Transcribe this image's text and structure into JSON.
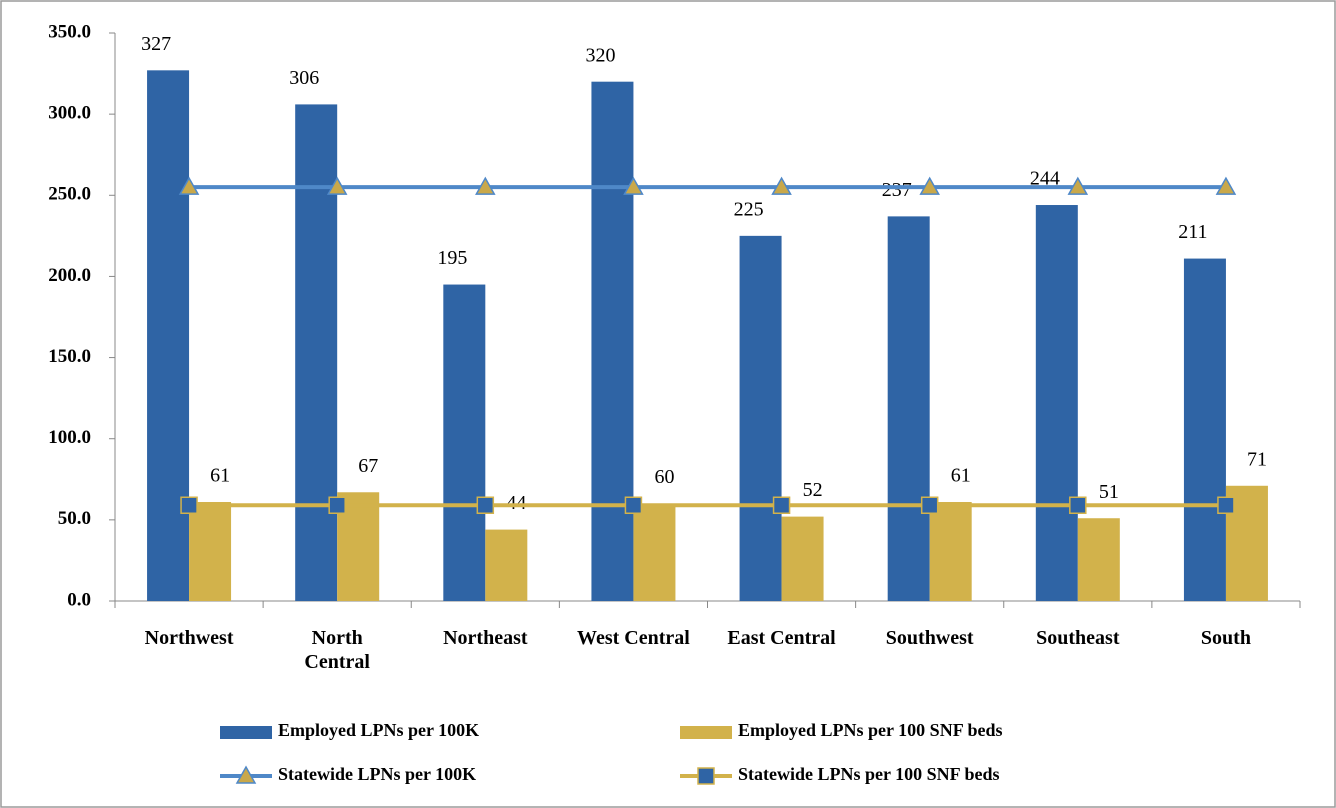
{
  "chart_data": {
    "type": "bar",
    "categories": [
      "Northwest",
      "North Central",
      "Northeast",
      "West Central",
      "East Central",
      "Southwest",
      "Southeast",
      "South"
    ],
    "ylim": [
      0,
      350
    ],
    "yticks": [
      {
        "value": 0,
        "label": "0.0"
      },
      {
        "value": 50,
        "label": "50.0"
      },
      {
        "value": 100,
        "label": "100.0"
      },
      {
        "value": 150,
        "label": "150.0"
      },
      {
        "value": 200,
        "label": "200.0"
      },
      {
        "value": 250,
        "label": "250.0"
      },
      {
        "value": 300,
        "label": "300.0"
      },
      {
        "value": 350,
        "label": "350.0"
      }
    ],
    "series": [
      {
        "name": "Employed LPNs per 100K",
        "type": "bar",
        "color": "#2f64a5",
        "values": [
          327,
          306,
          195,
          320,
          225,
          237,
          244,
          211
        ]
      },
      {
        "name": "Employed LPNs per 100 SNF beds",
        "type": "bar",
        "color": "#d2b24b",
        "values": [
          61,
          67,
          44,
          60,
          52,
          61,
          51,
          71
        ]
      },
      {
        "name": "Statewide LPNs per 100K",
        "type": "line",
        "color": "#4f88c8",
        "marker": "triangle",
        "marker_color": "#c9a84a",
        "values": [
          255,
          255,
          255,
          255,
          255,
          255,
          255,
          255
        ]
      },
      {
        "name": "Statewide LPNs per 100 SNF beds",
        "type": "line",
        "color": "#d2b24b",
        "marker": "square",
        "marker_color": "#2f64a5",
        "values": [
          59,
          59,
          59,
          59,
          59,
          59,
          59,
          59
        ]
      }
    ]
  }
}
